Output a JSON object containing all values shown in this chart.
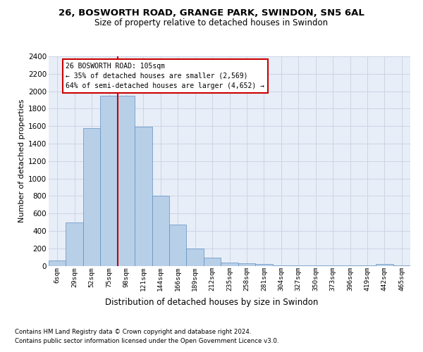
{
  "title_line1": "26, BOSWORTH ROAD, GRANGE PARK, SWINDON, SN5 6AL",
  "title_line2": "Size of property relative to detached houses in Swindon",
  "xlabel": "Distribution of detached houses by size in Swindon",
  "ylabel": "Number of detached properties",
  "footnote1": "Contains HM Land Registry data © Crown copyright and database right 2024.",
  "footnote2": "Contains public sector information licensed under the Open Government Licence v3.0.",
  "annotation_title": "26 BOSWORTH ROAD: 105sqm",
  "annotation_line2": "← 35% of detached houses are smaller (2,569)",
  "annotation_line3": "64% of semi-detached houses are larger (4,652) →",
  "bar_color": "#b8cfe8",
  "bar_edge_color": "#6090c0",
  "marker_color": "#cc0000",
  "categories": [
    "6sqm",
    "29sqm",
    "52sqm",
    "75sqm",
    "98sqm",
    "121sqm",
    "144sqm",
    "166sqm",
    "189sqm",
    "212sqm",
    "235sqm",
    "258sqm",
    "281sqm",
    "304sqm",
    "327sqm",
    "350sqm",
    "373sqm",
    "396sqm",
    "419sqm",
    "442sqm",
    "465sqm"
  ],
  "values": [
    60,
    500,
    1580,
    1950,
    1950,
    1590,
    800,
    475,
    195,
    90,
    35,
    30,
    20,
    8,
    5,
    5,
    5,
    5,
    5,
    20,
    5
  ],
  "marker_bin_idx": 4,
  "ylim_max": 2400,
  "ytick_step": 200,
  "grid_color": "#ccd5e5",
  "bg_color": "#e8eef8"
}
